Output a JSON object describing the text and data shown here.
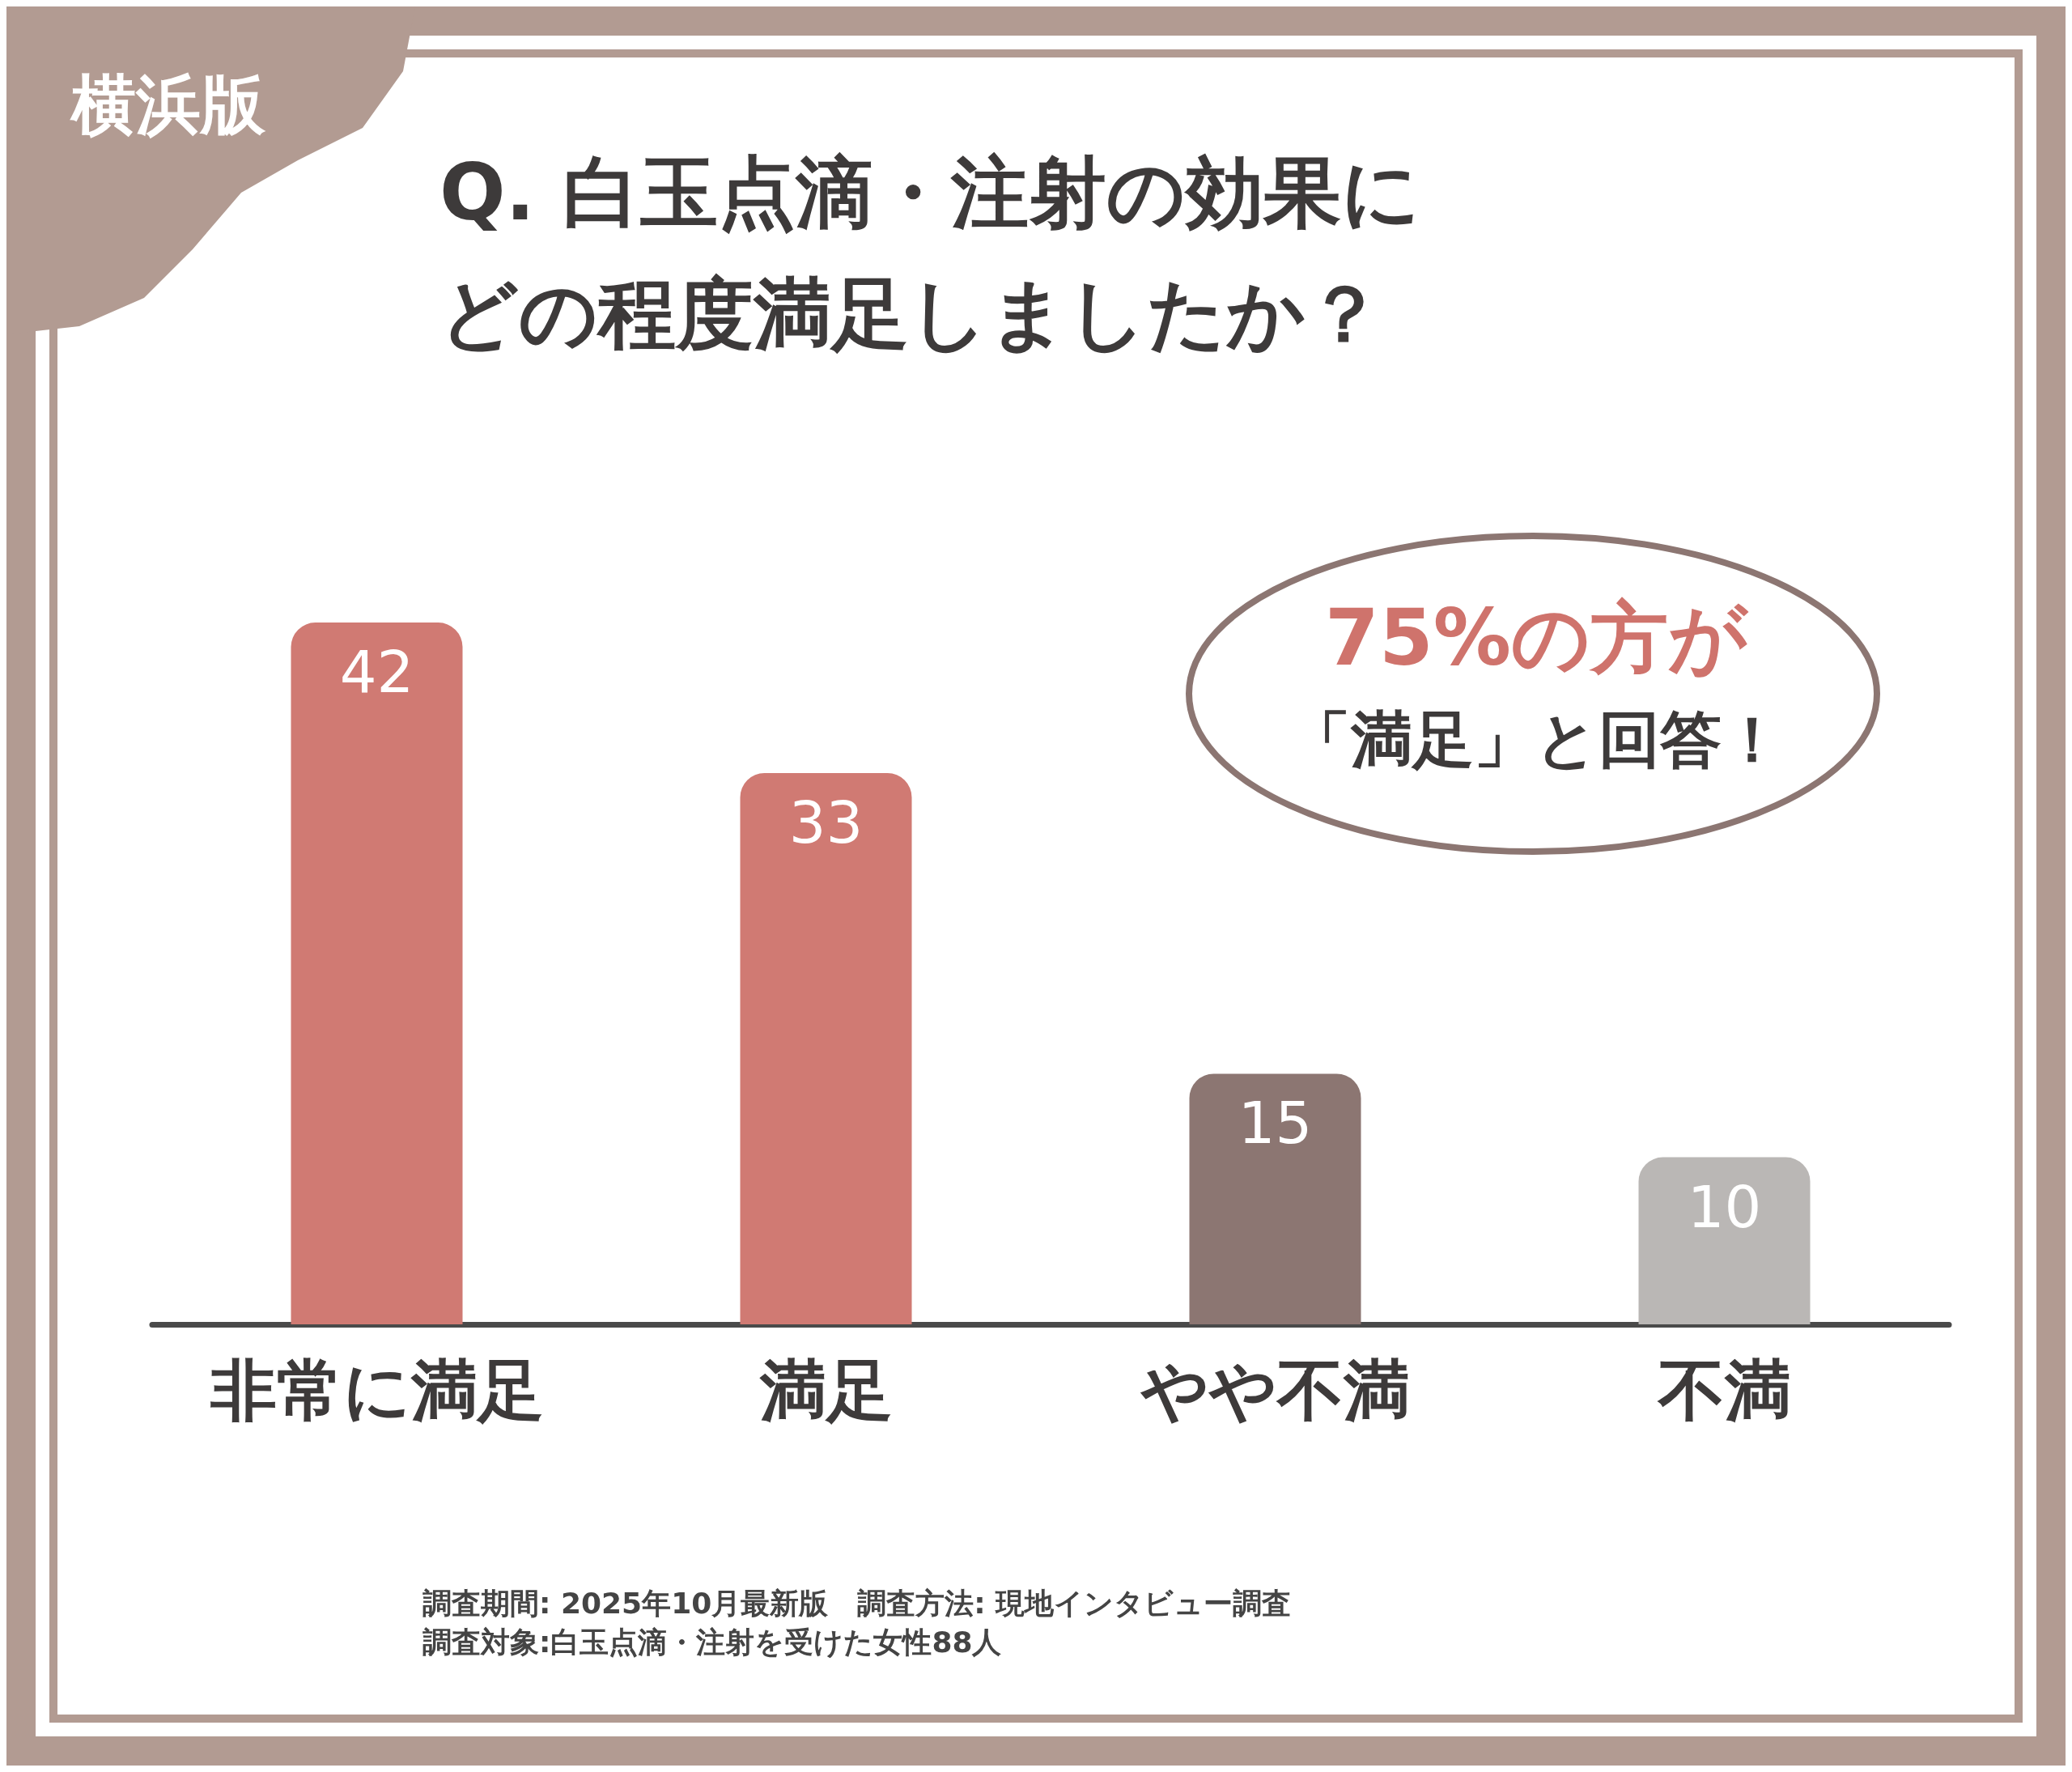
{
  "chart_data": {
    "type": "bar",
    "title": "Q. 白玉点滴・注射の効果にどの程度満足しましたか？",
    "categories": [
      "非常に満足",
      "満足",
      "やや不満",
      "不満"
    ],
    "values": [
      42,
      33,
      15,
      10
    ],
    "colors": [
      "#d07a73",
      "#d07a73",
      "#8c7672",
      "#bab7b5"
    ],
    "data_labels": true,
    "annotations": [
      "横浜版",
      "75%の方が",
      "「満足」と回答！",
      "調査期間: 2025年10月最新版　調査方法: 現地インタビュー調査",
      "調査対象:白玉点滴・注射を受けた女性88人"
    ]
  }
}
